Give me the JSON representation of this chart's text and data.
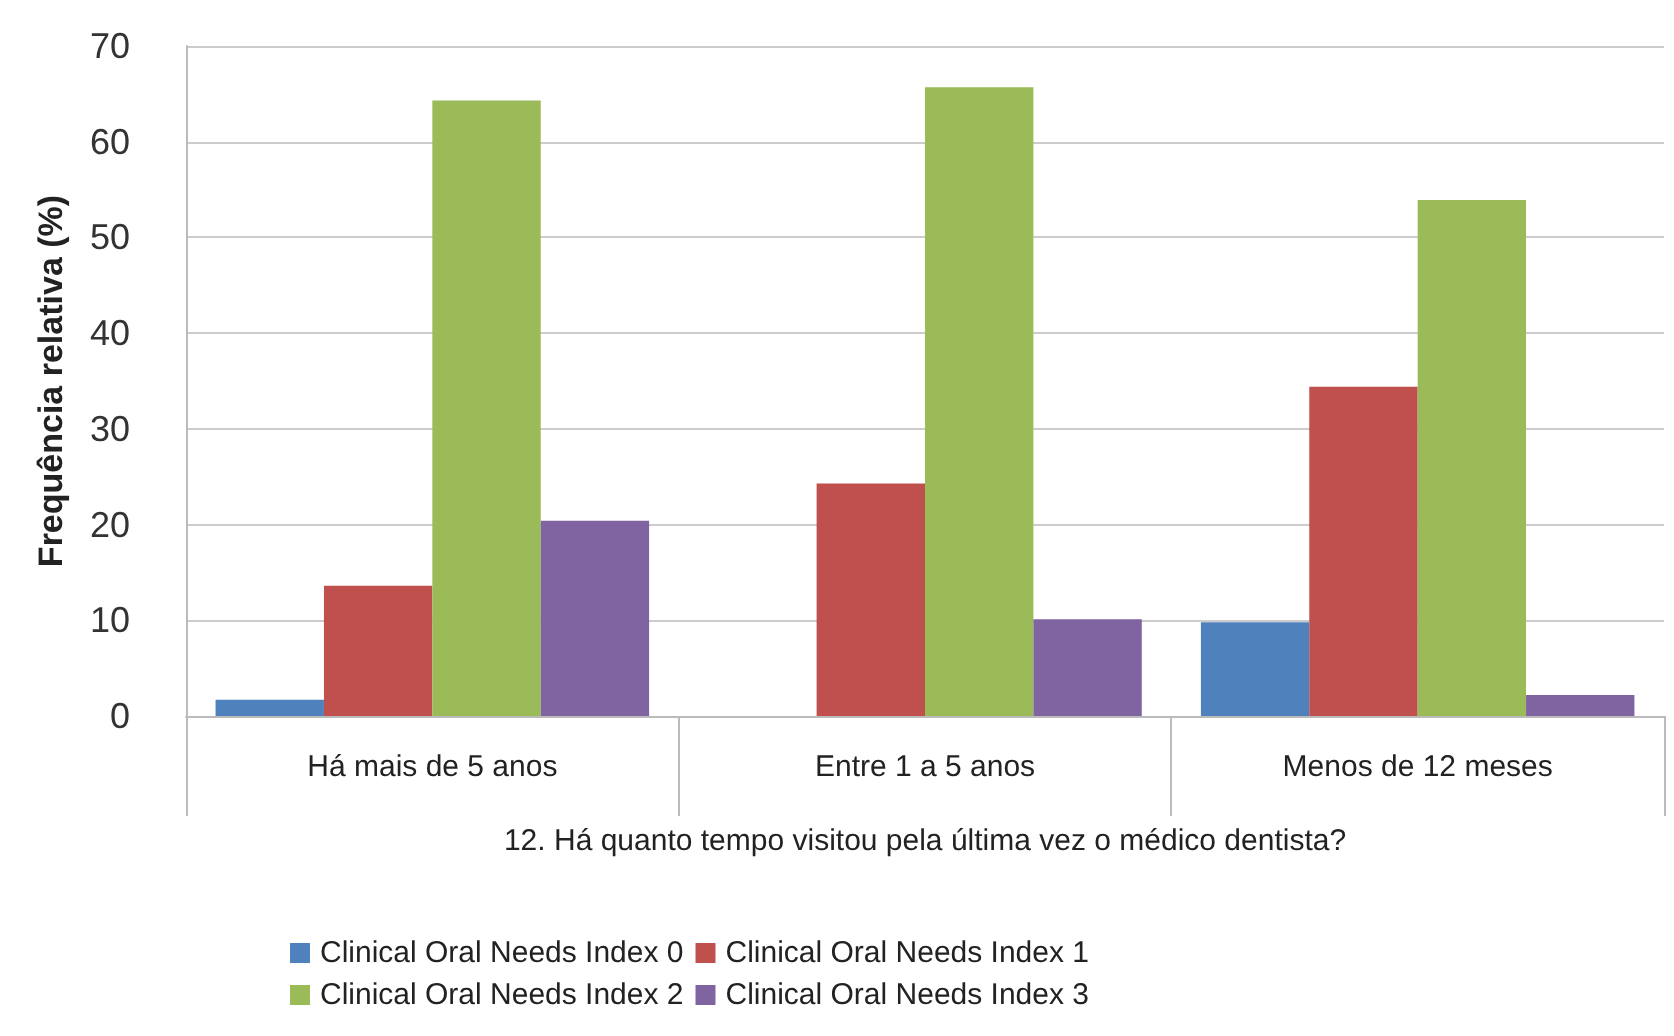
{
  "chart_data": {
    "type": "bar",
    "categories": [
      "Há mais de 5 anos",
      "Entre 1 a 5 anos",
      "Menos de 12 meses"
    ],
    "xlabel": "12. Há quanto tempo visitou pela última vez o médico dentista?",
    "ylabel": "Frequência relativa (%)",
    "series": [
      {
        "name": "Clinical Oral Needs Index 0",
        "color": "#4f81bd",
        "values": [
          1.7,
          0,
          9.8
        ]
      },
      {
        "name": "Clinical Oral Needs Index 1",
        "color": "#c0504d",
        "values": [
          13.6,
          24.3,
          34.4
        ]
      },
      {
        "name": "Clinical Oral Needs Index 2",
        "color": "#9bbb59",
        "values": [
          64.3,
          65.7,
          53.9
        ]
      },
      {
        "name": "Clinical Oral Needs Index 3",
        "color": "#8064a2",
        "values": [
          20.4,
          10.1,
          2.2
        ]
      }
    ],
    "ylim": [
      0,
      70
    ],
    "yticks": [
      0,
      10,
      20,
      30,
      40,
      50,
      60,
      70
    ],
    "grid": "y",
    "legend": "bottom"
  }
}
